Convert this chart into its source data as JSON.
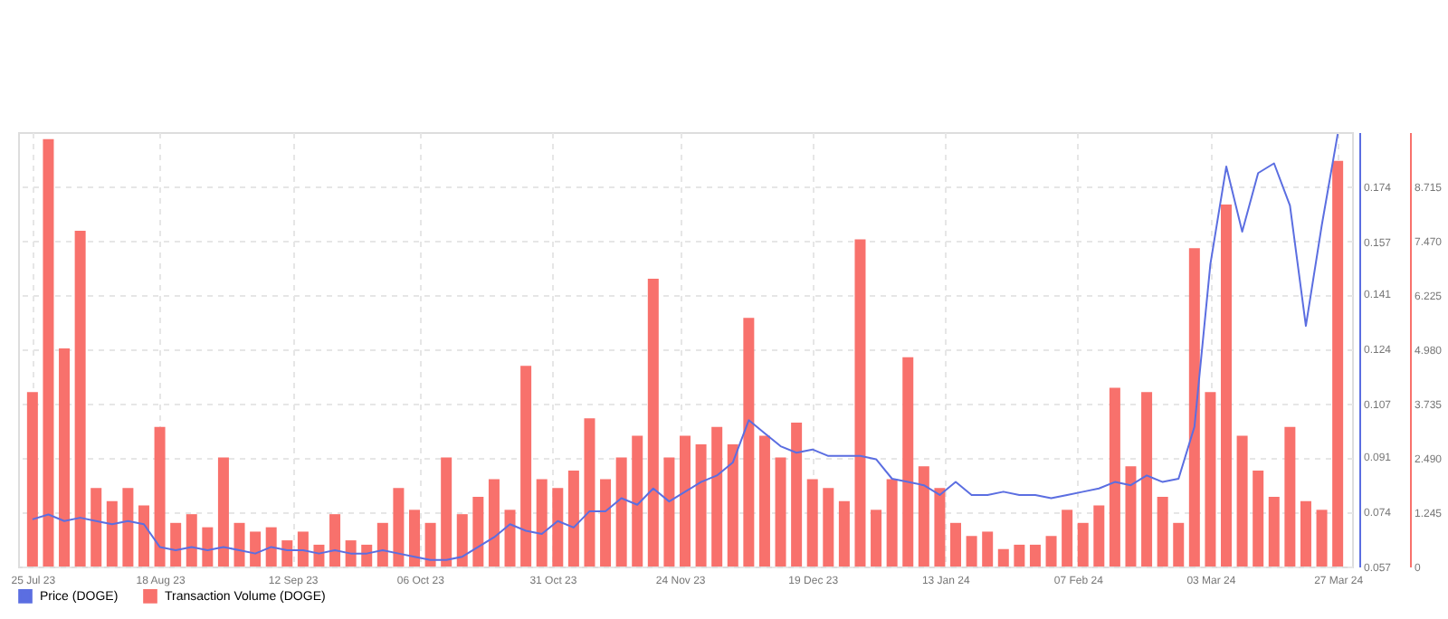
{
  "chart_data": {
    "type": "line",
    "x": [
      "2023-07-25",
      "2023-07-28",
      "2023-07-31",
      "2023-08-03",
      "2023-08-06",
      "2023-08-09",
      "2023-08-12",
      "2023-08-15",
      "2023-08-18",
      "2023-08-21",
      "2023-08-24",
      "2023-08-27",
      "2023-08-30",
      "2023-09-02",
      "2023-09-05",
      "2023-09-08",
      "2023-09-11",
      "2023-09-14",
      "2023-09-17",
      "2023-09-20",
      "2023-09-23",
      "2023-09-26",
      "2023-09-29",
      "2023-10-02",
      "2023-10-05",
      "2023-10-08",
      "2023-10-11",
      "2023-10-14",
      "2023-10-17",
      "2023-10-20",
      "2023-10-23",
      "2023-10-26",
      "2023-10-29",
      "2023-11-01",
      "2023-11-04",
      "2023-11-07",
      "2023-11-10",
      "2023-11-13",
      "2023-11-16",
      "2023-11-19",
      "2023-11-22",
      "2023-11-25",
      "2023-11-28",
      "2023-12-01",
      "2023-12-04",
      "2023-12-07",
      "2023-12-10",
      "2023-12-13",
      "2023-12-16",
      "2023-12-19",
      "2023-12-22",
      "2023-12-25",
      "2023-12-28",
      "2023-12-31",
      "2024-01-03",
      "2024-01-06",
      "2024-01-09",
      "2024-01-12",
      "2024-01-15",
      "2024-01-18",
      "2024-01-21",
      "2024-01-24",
      "2024-01-27",
      "2024-01-30",
      "2024-02-02",
      "2024-02-05",
      "2024-02-08",
      "2024-02-11",
      "2024-02-14",
      "2024-02-17",
      "2024-02-20",
      "2024-02-23",
      "2024-02-26",
      "2024-02-29",
      "2024-03-03",
      "2024-03-06",
      "2024-03-09",
      "2024-03-12",
      "2024-03-15",
      "2024-03-18",
      "2024-03-21",
      "2024-03-24",
      "2024-03-27"
    ],
    "series": [
      {
        "name": "Transaction Volume (DOGE)",
        "type": "bar",
        "color": "#f8716c",
        "values": [
          4.0,
          9.8,
          5.0,
          7.7,
          1.8,
          1.5,
          1.8,
          1.4,
          3.2,
          1.0,
          1.2,
          0.9,
          2.5,
          1.0,
          0.8,
          0.9,
          0.6,
          0.8,
          0.5,
          1.2,
          0.6,
          0.5,
          1.0,
          1.8,
          1.3,
          1.0,
          2.5,
          1.2,
          1.6,
          2.0,
          1.3,
          4.6,
          2.0,
          1.8,
          2.2,
          3.4,
          2.0,
          2.5,
          3.0,
          6.6,
          2.5,
          3.0,
          2.8,
          3.2,
          2.8,
          5.7,
          3.0,
          2.5,
          3.3,
          2.0,
          1.8,
          1.5,
          7.5,
          1.3,
          2.0,
          4.8,
          2.3,
          1.8,
          1.0,
          0.7,
          0.8,
          0.4,
          0.5,
          0.5,
          0.7,
          1.3,
          1.0,
          1.4,
          4.1,
          2.3,
          4.0,
          1.6,
          1.0,
          7.3,
          4.0,
          8.3,
          3.0,
          2.2,
          1.6,
          3.2,
          1.5,
          1.3,
          9.3
        ]
      },
      {
        "name": "Price (DOGE)",
        "axis": "y2",
        "color": "#5b6ee1",
        "values": [
          0.0715,
          0.073,
          0.071,
          0.072,
          0.071,
          0.07,
          0.071,
          0.07,
          0.063,
          0.062,
          0.063,
          0.062,
          0.063,
          0.062,
          0.061,
          0.063,
          0.062,
          0.062,
          0.061,
          0.062,
          0.061,
          0.061,
          0.062,
          0.061,
          0.06,
          0.059,
          0.059,
          0.06,
          0.063,
          0.066,
          0.07,
          0.068,
          0.067,
          0.071,
          0.069,
          0.074,
          0.074,
          0.078,
          0.076,
          0.081,
          0.077,
          0.08,
          0.083,
          0.085,
          0.089,
          0.102,
          0.098,
          0.094,
          0.092,
          0.093,
          0.091,
          0.091,
          0.091,
          0.09,
          0.084,
          0.083,
          0.082,
          0.079,
          0.083,
          0.079,
          0.079,
          0.08,
          0.079,
          0.079,
          0.078,
          0.079,
          0.08,
          0.081,
          0.083,
          0.082,
          0.085,
          0.083,
          0.084,
          0.1,
          0.15,
          0.18,
          0.16,
          0.178,
          0.181,
          0.168,
          0.131,
          0.162,
          0.19
        ]
      }
    ],
    "xlim": [
      "2023-07-24",
      "2024-03-28"
    ],
    "xticks": [
      {
        "value": "2023-07-25",
        "label": "25 Jul 23"
      },
      {
        "value": "2023-08-18",
        "label": "18 Aug 23"
      },
      {
        "value": "2023-09-12",
        "label": "12 Sep 23"
      },
      {
        "value": "2023-10-06",
        "label": "06 Oct 23"
      },
      {
        "value": "2023-10-31",
        "label": "31 Oct 23"
      },
      {
        "value": "2023-11-24",
        "label": "24 Nov 23"
      },
      {
        "value": "2023-12-19",
        "label": "19 Dec 23"
      },
      {
        "value": "2024-01-13",
        "label": "13 Jan 24"
      },
      {
        "value": "2024-02-07",
        "label": "07 Feb 24"
      },
      {
        "value": "2024-03-03",
        "label": "03 Mar 24"
      },
      {
        "value": "2024-03-27",
        "label": "27 Mar 24"
      }
    ],
    "y2lim": [
      0.057,
      0.1906
    ],
    "y2ticks": [
      0.057,
      0.074,
      0.091,
      0.107,
      0.124,
      0.141,
      0.157,
      0.174
    ],
    "ylim": [
      0,
      9.96
    ],
    "yticks": [
      {
        "value": 0,
        "label": "0"
      },
      {
        "value": 1.245,
        "label": "1.245"
      },
      {
        "value": 2.49,
        "label": "2.490"
      },
      {
        "value": 3.735,
        "label": "3.735"
      },
      {
        "value": 4.98,
        "label": "4.980"
      },
      {
        "value": 6.225,
        "label": "6.225"
      },
      {
        "value": 7.47,
        "label": "7.470"
      },
      {
        "value": 8.715,
        "label": "8.715"
      }
    ],
    "grid": true,
    "legend": "bottom"
  }
}
